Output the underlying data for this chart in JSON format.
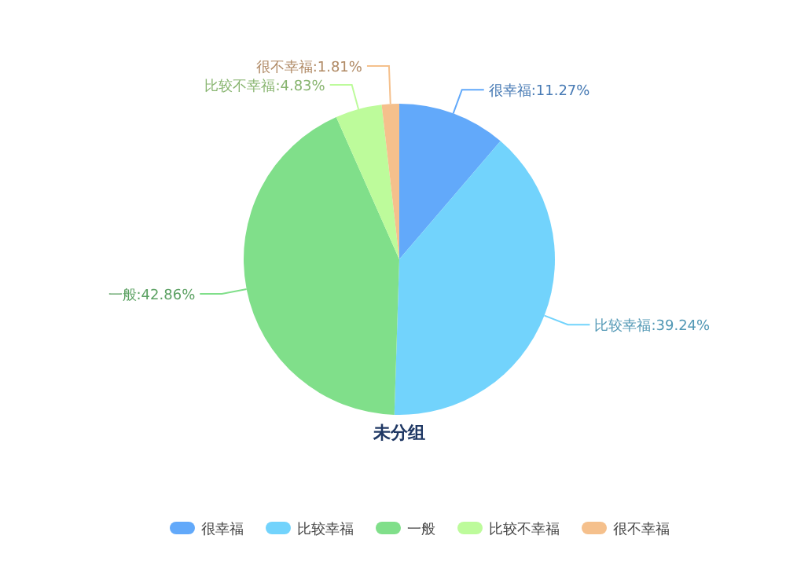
{
  "chart_data": {
    "type": "pie",
    "title": "未分组",
    "categories": [
      "很幸福",
      "比较幸福",
      "一般",
      "比较不幸福",
      "很不幸福"
    ],
    "values": [
      11.27,
      39.24,
      42.86,
      4.83,
      1.81
    ],
    "colors": [
      "#62a9fa",
      "#72d3fc",
      "#80df8a",
      "#bdfb9b",
      "#f5c08c"
    ],
    "value_labels": [
      "很幸福:11.27%",
      "比较幸福:39.24%",
      "一般:42.86%",
      "比较不幸福:4.83%",
      "很不幸福:1.81%"
    ],
    "legend": "bottom"
  }
}
